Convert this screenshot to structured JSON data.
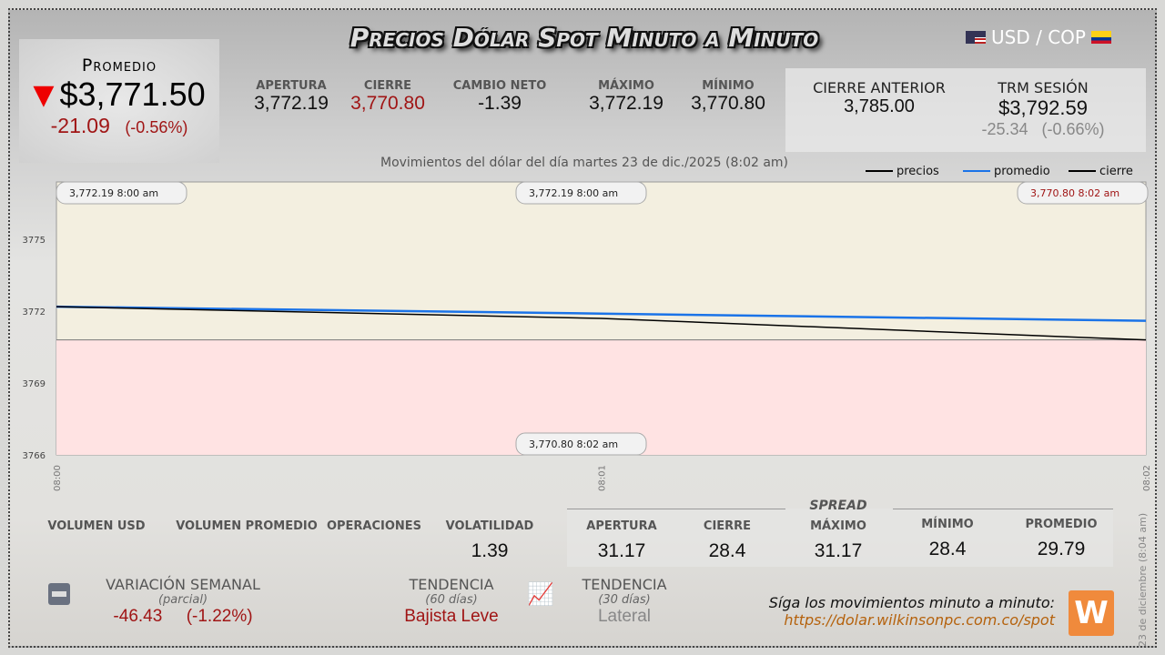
{
  "header": {
    "title": "Precios Dólar Spot Minuto a Minuto",
    "pair": "USD / COP",
    "flags": [
      "us-flag-icon",
      "colombia-flag-icon"
    ]
  },
  "promedio": {
    "label": "Promedio",
    "value": "$3,771.50",
    "change": "-21.09",
    "change_pct": "(-0.56%)",
    "direction": "down"
  },
  "stats": [
    {
      "label": "APERTURA",
      "value": "3,772.19"
    },
    {
      "label": "CIERRE",
      "value": "3,770.80"
    },
    {
      "label": "CAMBIO NETO",
      "value": "-1.39"
    },
    {
      "label": "MÁXIMO",
      "value": "3,772.19"
    },
    {
      "label": "MÍNIMO",
      "value": "3,770.80"
    }
  ],
  "cierre_anterior": {
    "label": "CIERRE ANTERIOR",
    "value": "3,785.00"
  },
  "trm": {
    "label": "TRM SESIÓN",
    "value": "$3,792.59",
    "change": "-25.34",
    "change_pct": "(-0.66%)"
  },
  "subtitle": "Movimientos del dólar del día martes 23 de dic./2025 (8:02 am)",
  "chart_data": {
    "type": "line",
    "x": [
      "08:00",
      "08:01",
      "08:02"
    ],
    "series": [
      {
        "name": "precios",
        "color": "#000000",
        "values": [
          3772.19,
          3771.7,
          3770.8
        ]
      },
      {
        "name": "promedio",
        "color": "#1a73e8",
        "values": [
          3772.19,
          3771.9,
          3771.6
        ]
      }
    ],
    "reference": {
      "name": "cierre",
      "value": 3770.8
    },
    "yticks": [
      "3775",
      "3772",
      "3769",
      "3766"
    ],
    "ylim": [
      3766,
      3777.4
    ],
    "legend": "top-right",
    "tooltips": [
      {
        "price": "3,772.19",
        "time": "8:00 am"
      },
      {
        "price": "3,772.19",
        "time": "8:00 am"
      },
      {
        "price": "3,770.80",
        "time": "8:02 am"
      },
      {
        "price": "3,770.80",
        "time": "8:02 am"
      }
    ]
  },
  "bottom": [
    {
      "label": "VOLUMEN USD",
      "value": ""
    },
    {
      "label": "VOLUMEN PROMEDIO",
      "value": ""
    },
    {
      "label": "OPERACIONES",
      "value": ""
    },
    {
      "label": "VOLATILIDAD",
      "value": "1.39"
    }
  ],
  "spread": {
    "title": "SPREAD",
    "items": [
      {
        "label": "APERTURA",
        "value": "31.17"
      },
      {
        "label": "CIERRE",
        "value": "28.4"
      },
      {
        "label": "MÁXIMO",
        "value": "31.17"
      },
      {
        "label": "MÍNIMO",
        "value": "28.4"
      },
      {
        "label": "PROMEDIO",
        "value": "29.79"
      }
    ]
  },
  "variacion": {
    "label": "VARIACIÓN SEMANAL",
    "sub": "(parcial)",
    "value": "-46.43",
    "pct": "(-1.22%)"
  },
  "tend60": {
    "label": "TENDENCIA",
    "sub": "(60 días)",
    "value": "Bajista Leve"
  },
  "tend30": {
    "label": "TENDENCIA",
    "sub": "(30 días)",
    "value": "Lateral"
  },
  "follow": {
    "text": "Síga los movimientos minuto a minuto:",
    "url": "https://dolar.wilkinsonpc.com.co/spot"
  },
  "timestamp": "23 de diciembre (8:04 am)"
}
